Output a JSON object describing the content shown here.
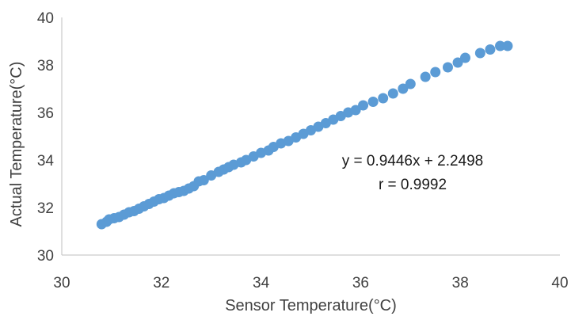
{
  "chart_data": {
    "type": "scatter",
    "title": "",
    "xlabel": "Sensor Temperature(°C)",
    "ylabel": "Actual Temperature(°C)",
    "xlim": [
      30,
      40
    ],
    "ylim": [
      30,
      40
    ],
    "xticks": [
      "30",
      "32",
      "34",
      "36",
      "38",
      "40"
    ],
    "yticks": [
      "30",
      "32",
      "34",
      "36",
      "38",
      "40"
    ],
    "grid": false,
    "legend": "none",
    "marker_color": "#5b9bd5",
    "annotations": {
      "equation": "y = 0.9446x + 2.2498",
      "r": "r = 0.9992"
    },
    "series": [
      {
        "x": [
          30.8,
          30.9,
          30.95,
          31.05,
          31.15,
          31.25,
          31.35,
          31.45,
          31.55,
          31.65,
          31.75,
          31.85,
          31.95,
          32.05,
          32.15,
          32.25,
          32.35,
          32.45,
          32.55,
          32.65,
          32.75,
          32.85,
          33.0,
          33.15,
          33.25,
          33.35,
          33.45,
          33.6,
          33.7,
          33.85,
          34.0,
          34.15,
          34.25,
          34.4,
          34.55,
          34.7,
          34.85,
          35.0,
          35.15,
          35.3,
          35.45,
          35.6,
          35.75,
          35.9,
          36.05,
          36.25,
          36.45,
          36.65,
          36.85,
          37.0,
          37.3,
          37.5,
          37.75,
          37.95,
          38.1,
          38.4,
          38.6,
          38.8,
          38.95
        ],
        "y": [
          31.3,
          31.4,
          31.5,
          31.55,
          31.6,
          31.7,
          31.8,
          31.85,
          31.95,
          32.05,
          32.15,
          32.25,
          32.35,
          32.4,
          32.5,
          32.6,
          32.65,
          32.7,
          32.8,
          32.9,
          33.1,
          33.15,
          33.35,
          33.5,
          33.6,
          33.7,
          33.8,
          33.9,
          34.0,
          34.15,
          34.3,
          34.4,
          34.55,
          34.7,
          34.8,
          34.95,
          35.1,
          35.25,
          35.4,
          35.55,
          35.7,
          35.85,
          36.0,
          36.1,
          36.3,
          36.45,
          36.6,
          36.8,
          37.0,
          37.2,
          37.5,
          37.7,
          37.9,
          38.1,
          38.3,
          38.5,
          38.65,
          38.8,
          38.8
        ]
      }
    ]
  }
}
